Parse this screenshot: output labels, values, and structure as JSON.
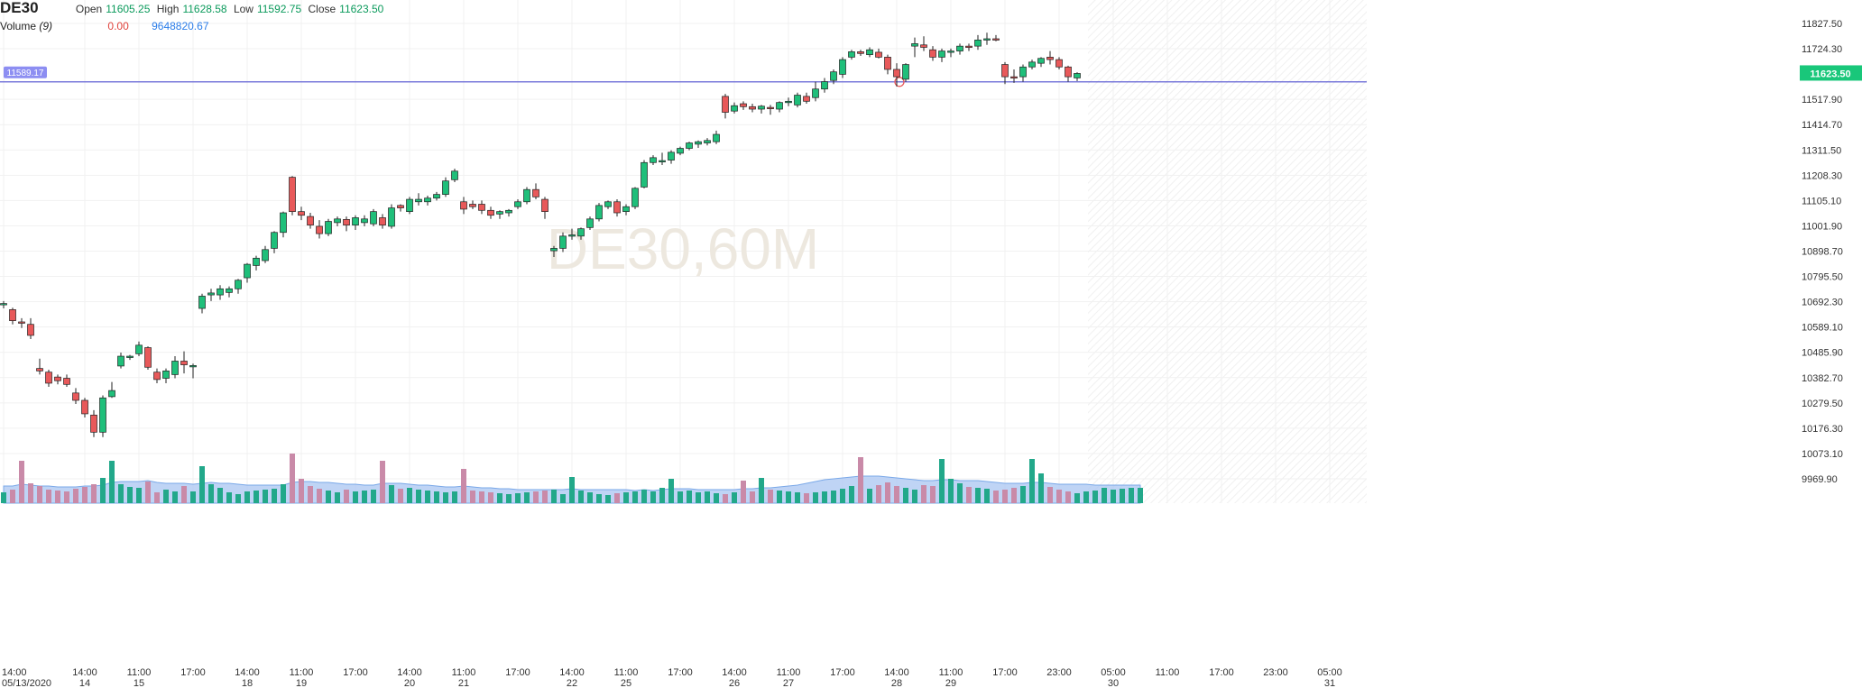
{
  "symbol": "DE30",
  "legend": {
    "open_label": "Open",
    "open": "11605.25",
    "high_label": "High",
    "high": "11628.58",
    "low_label": "Low",
    "low": "11592.75",
    "close_label": "Close",
    "close": "11623.50",
    "volume_label": "Volume",
    "volume_period": "(9)",
    "volume_value": "0.00",
    "volume_ma": "9648820.67"
  },
  "watermark": "DE30,60M",
  "colors": {
    "up": "#1fbf7a",
    "down": "#e8595a",
    "wick": "#222222",
    "hline": "#4f4fcf",
    "vol_up": "#22a88a",
    "vol_down": "#c98aa8",
    "vol_area": "#a9c6f2",
    "price_label": "#19c77a",
    "hline_label": "#8d8ef2"
  },
  "chart_data": {
    "type": "candlestick",
    "title": "DE30,60M",
    "ylim": [
      9900,
      11880
    ],
    "y_ticks": [
      "11827.50",
      "11724.30",
      "11517.90",
      "11414.70",
      "11311.50",
      "11208.30",
      "11105.10",
      "11001.90",
      "10898.70",
      "10795.50",
      "10692.30",
      "10589.10",
      "10485.90",
      "10382.70",
      "10279.50",
      "10176.30",
      "10073.10",
      "9969.90"
    ],
    "x_ticks": [
      {
        "time": "14:00",
        "date": "05/13/2020",
        "slot": 0
      },
      {
        "time": "14:00",
        "date": "14",
        "slot": 9
      },
      {
        "time": "11:00",
        "date": "15",
        "slot": 15
      },
      {
        "time": "17:00",
        "date": "",
        "slot": 21
      },
      {
        "time": "14:00",
        "date": "18",
        "slot": 27
      },
      {
        "time": "11:00",
        "date": "19",
        "slot": 33
      },
      {
        "time": "17:00",
        "date": "",
        "slot": 39
      },
      {
        "time": "14:00",
        "date": "20",
        "slot": 45
      },
      {
        "time": "11:00",
        "date": "21",
        "slot": 51
      },
      {
        "time": "17:00",
        "date": "",
        "slot": 57
      },
      {
        "time": "14:00",
        "date": "22",
        "slot": 63
      },
      {
        "time": "11:00",
        "date": "25",
        "slot": 69
      },
      {
        "time": "17:00",
        "date": "",
        "slot": 75
      },
      {
        "time": "14:00",
        "date": "26",
        "slot": 81
      },
      {
        "time": "11:00",
        "date": "27",
        "slot": 87
      },
      {
        "time": "17:00",
        "date": "",
        "slot": 93
      },
      {
        "time": "14:00",
        "date": "28",
        "slot": 99
      },
      {
        "time": "11:00",
        "date": "29",
        "slot": 105
      },
      {
        "time": "17:00",
        "date": "",
        "slot": 111
      },
      {
        "time": "23:00",
        "date": "",
        "slot": 117
      },
      {
        "time": "05:00",
        "date": "30",
        "slot": 123
      },
      {
        "time": "11:00",
        "date": "",
        "slot": 129
      },
      {
        "time": "17:00",
        "date": "",
        "slot": 135
      },
      {
        "time": "23:00",
        "date": "",
        "slot": 141
      },
      {
        "time": "05:00",
        "date": "31",
        "slot": 147
      }
    ],
    "hline": {
      "value": 11589.17,
      "label": "11589.17"
    },
    "last_price": {
      "value": 11623.5,
      "label": "11623.50"
    },
    "candles": [
      {
        "o": 10680,
        "h": 10695,
        "l": 10665,
        "c": 10685
      },
      {
        "o": 10660,
        "h": 10668,
        "l": 10600,
        "c": 10615
      },
      {
        "o": 10610,
        "h": 10625,
        "l": 10585,
        "c": 10605
      },
      {
        "o": 10600,
        "h": 10625,
        "l": 10540,
        "c": 10555
      },
      {
        "o": 10420,
        "h": 10460,
        "l": 10395,
        "c": 10410
      },
      {
        "o": 10405,
        "h": 10415,
        "l": 10345,
        "c": 10360
      },
      {
        "o": 10385,
        "h": 10395,
        "l": 10355,
        "c": 10370
      },
      {
        "o": 10380,
        "h": 10395,
        "l": 10345,
        "c": 10355
      },
      {
        "o": 10320,
        "h": 10340,
        "l": 10275,
        "c": 10290
      },
      {
        "o": 10290,
        "h": 10300,
        "l": 10220,
        "c": 10235
      },
      {
        "o": 10230,
        "h": 10250,
        "l": 10140,
        "c": 10160
      },
      {
        "o": 10160,
        "h": 10310,
        "l": 10140,
        "c": 10300
      },
      {
        "o": 10305,
        "h": 10365,
        "l": 10300,
        "c": 10330
      },
      {
        "o": 10430,
        "h": 10485,
        "l": 10420,
        "c": 10470
      },
      {
        "o": 10465,
        "h": 10475,
        "l": 10455,
        "c": 10470
      },
      {
        "o": 10480,
        "h": 10530,
        "l": 10470,
        "c": 10515
      },
      {
        "o": 10505,
        "h": 10510,
        "l": 10415,
        "c": 10425
      },
      {
        "o": 10405,
        "h": 10420,
        "l": 10360,
        "c": 10375
      },
      {
        "o": 10380,
        "h": 10420,
        "l": 10360,
        "c": 10410
      },
      {
        "o": 10395,
        "h": 10470,
        "l": 10380,
        "c": 10450
      },
      {
        "o": 10450,
        "h": 10490,
        "l": 10400,
        "c": 10435
      },
      {
        "o": 10430,
        "h": 10440,
        "l": 10380,
        "c": 10432
      },
      {
        "o": 10665,
        "h": 10725,
        "l": 10645,
        "c": 10715
      },
      {
        "o": 10720,
        "h": 10745,
        "l": 10695,
        "c": 10728
      },
      {
        "o": 10720,
        "h": 10760,
        "l": 10700,
        "c": 10745
      },
      {
        "o": 10730,
        "h": 10755,
        "l": 10710,
        "c": 10745
      },
      {
        "o": 10745,
        "h": 10785,
        "l": 10725,
        "c": 10780
      },
      {
        "o": 10790,
        "h": 10850,
        "l": 10770,
        "c": 10845
      },
      {
        "o": 10840,
        "h": 10880,
        "l": 10820,
        "c": 10870
      },
      {
        "o": 10860,
        "h": 10920,
        "l": 10850,
        "c": 10905
      },
      {
        "o": 10910,
        "h": 10980,
        "l": 10890,
        "c": 10975
      },
      {
        "o": 10975,
        "h": 11060,
        "l": 10955,
        "c": 11055
      },
      {
        "o": 11200,
        "h": 11205,
        "l": 11045,
        "c": 11060
      },
      {
        "o": 11060,
        "h": 11080,
        "l": 11025,
        "c": 11045
      },
      {
        "o": 11040,
        "h": 11055,
        "l": 10990,
        "c": 11005
      },
      {
        "o": 11000,
        "h": 11025,
        "l": 10950,
        "c": 10970
      },
      {
        "o": 10970,
        "h": 11030,
        "l": 10960,
        "c": 11020
      },
      {
        "o": 11015,
        "h": 11040,
        "l": 11000,
        "c": 11030
      },
      {
        "o": 11028,
        "h": 11040,
        "l": 10980,
        "c": 11005
      },
      {
        "o": 11005,
        "h": 11045,
        "l": 10985,
        "c": 11035
      },
      {
        "o": 11015,
        "h": 11045,
        "l": 11000,
        "c": 11030
      },
      {
        "o": 11010,
        "h": 11070,
        "l": 11000,
        "c": 11060
      },
      {
        "o": 11035,
        "h": 11050,
        "l": 10990,
        "c": 11005
      },
      {
        "o": 11000,
        "h": 11090,
        "l": 10990,
        "c": 11075
      },
      {
        "o": 11085,
        "h": 11090,
        "l": 11060,
        "c": 11075
      },
      {
        "o": 11060,
        "h": 11120,
        "l": 11050,
        "c": 11110
      },
      {
        "o": 11100,
        "h": 11135,
        "l": 11085,
        "c": 11110
      },
      {
        "o": 11100,
        "h": 11125,
        "l": 11085,
        "c": 11115
      },
      {
        "o": 11115,
        "h": 11140,
        "l": 11105,
        "c": 11130
      },
      {
        "o": 11130,
        "h": 11200,
        "l": 11120,
        "c": 11185
      },
      {
        "o": 11190,
        "h": 11235,
        "l": 11180,
        "c": 11225
      },
      {
        "o": 11100,
        "h": 11120,
        "l": 11050,
        "c": 11070
      },
      {
        "o": 11090,
        "h": 11105,
        "l": 11070,
        "c": 11080
      },
      {
        "o": 11090,
        "h": 11105,
        "l": 11050,
        "c": 11065
      },
      {
        "o": 11065,
        "h": 11080,
        "l": 11030,
        "c": 11045
      },
      {
        "o": 11050,
        "h": 11065,
        "l": 11030,
        "c": 11060
      },
      {
        "o": 11055,
        "h": 11070,
        "l": 11040,
        "c": 11065
      },
      {
        "o": 11080,
        "h": 11110,
        "l": 11070,
        "c": 11100
      },
      {
        "o": 11100,
        "h": 11160,
        "l": 11090,
        "c": 11150
      },
      {
        "o": 11150,
        "h": 11175,
        "l": 11110,
        "c": 11120
      },
      {
        "o": 11110,
        "h": 11120,
        "l": 11030,
        "c": 11060
      },
      {
        "o": 10900,
        "h": 10920,
        "l": 10875,
        "c": 10910
      },
      {
        "o": 10910,
        "h": 10975,
        "l": 10895,
        "c": 10960
      },
      {
        "o": 10960,
        "h": 10990,
        "l": 10945,
        "c": 10965
      },
      {
        "o": 10960,
        "h": 10995,
        "l": 10945,
        "c": 10990
      },
      {
        "o": 10995,
        "h": 11040,
        "l": 10985,
        "c": 11030
      },
      {
        "o": 11030,
        "h": 11095,
        "l": 11020,
        "c": 11085
      },
      {
        "o": 11080,
        "h": 11105,
        "l": 11070,
        "c": 11100
      },
      {
        "o": 11100,
        "h": 11110,
        "l": 11040,
        "c": 11055
      },
      {
        "o": 11060,
        "h": 11090,
        "l": 11045,
        "c": 11080
      },
      {
        "o": 11080,
        "h": 11160,
        "l": 11070,
        "c": 11155
      },
      {
        "o": 11160,
        "h": 11270,
        "l": 11155,
        "c": 11260
      },
      {
        "o": 11260,
        "h": 11290,
        "l": 11250,
        "c": 11280
      },
      {
        "o": 11265,
        "h": 11300,
        "l": 11250,
        "c": 11268
      },
      {
        "o": 11270,
        "h": 11310,
        "l": 11255,
        "c": 11302
      },
      {
        "o": 11298,
        "h": 11325,
        "l": 11290,
        "c": 11318
      },
      {
        "o": 11318,
        "h": 11345,
        "l": 11310,
        "c": 11340
      },
      {
        "o": 11335,
        "h": 11350,
        "l": 11320,
        "c": 11345
      },
      {
        "o": 11340,
        "h": 11360,
        "l": 11330,
        "c": 11350
      },
      {
        "o": 11345,
        "h": 11390,
        "l": 11335,
        "c": 11375
      },
      {
        "o": 11530,
        "h": 11540,
        "l": 11440,
        "c": 11465
      },
      {
        "o": 11470,
        "h": 11505,
        "l": 11460,
        "c": 11492
      },
      {
        "o": 11500,
        "h": 11510,
        "l": 11475,
        "c": 11488
      },
      {
        "o": 11488,
        "h": 11500,
        "l": 11465,
        "c": 11478
      },
      {
        "o": 11478,
        "h": 11495,
        "l": 11460,
        "c": 11490
      },
      {
        "o": 11485,
        "h": 11495,
        "l": 11455,
        "c": 11480
      },
      {
        "o": 11478,
        "h": 11510,
        "l": 11465,
        "c": 11505
      },
      {
        "o": 11505,
        "h": 11525,
        "l": 11490,
        "c": 11510
      },
      {
        "o": 11495,
        "h": 11545,
        "l": 11485,
        "c": 11535
      },
      {
        "o": 11530,
        "h": 11545,
        "l": 11500,
        "c": 11510
      },
      {
        "o": 11525,
        "h": 11590,
        "l": 11510,
        "c": 11560
      },
      {
        "o": 11560,
        "h": 11605,
        "l": 11545,
        "c": 11590
      },
      {
        "o": 11595,
        "h": 11640,
        "l": 11580,
        "c": 11630
      },
      {
        "o": 11620,
        "h": 11690,
        "l": 11605,
        "c": 11680
      },
      {
        "o": 11690,
        "h": 11720,
        "l": 11680,
        "c": 11712
      },
      {
        "o": 11712,
        "h": 11720,
        "l": 11695,
        "c": 11705
      },
      {
        "o": 11700,
        "h": 11730,
        "l": 11690,
        "c": 11720
      },
      {
        "o": 11710,
        "h": 11725,
        "l": 11685,
        "c": 11690
      },
      {
        "o": 11690,
        "h": 11700,
        "l": 11620,
        "c": 11640
      },
      {
        "o": 11640,
        "h": 11665,
        "l": 11570,
        "c": 11610
      },
      {
        "o": 11600,
        "h": 11665,
        "l": 11590,
        "c": 11660
      },
      {
        "o": 11735,
        "h": 11770,
        "l": 11690,
        "c": 11745
      },
      {
        "o": 11740,
        "h": 11775,
        "l": 11715,
        "c": 11730
      },
      {
        "o": 11720,
        "h": 11735,
        "l": 11675,
        "c": 11690
      },
      {
        "o": 11690,
        "h": 11725,
        "l": 11670,
        "c": 11715
      },
      {
        "o": 11710,
        "h": 11725,
        "l": 11690,
        "c": 11715
      },
      {
        "o": 11715,
        "h": 11745,
        "l": 11700,
        "c": 11735
      },
      {
        "o": 11735,
        "h": 11745,
        "l": 11715,
        "c": 11730
      },
      {
        "o": 11735,
        "h": 11780,
        "l": 11720,
        "c": 11760
      },
      {
        "o": 11760,
        "h": 11790,
        "l": 11740,
        "c": 11765
      },
      {
        "o": 11765,
        "h": 11780,
        "l": 11755,
        "c": 11762
      },
      {
        "o": 11660,
        "h": 11670,
        "l": 11580,
        "c": 11610
      },
      {
        "o": 11610,
        "h": 11640,
        "l": 11585,
        "c": 11605
      },
      {
        "o": 11610,
        "h": 11660,
        "l": 11590,
        "c": 11650
      },
      {
        "o": 11650,
        "h": 11680,
        "l": 11640,
        "c": 11670
      },
      {
        "o": 11665,
        "h": 11690,
        "l": 11650,
        "c": 11685
      },
      {
        "o": 11690,
        "h": 11715,
        "l": 11660,
        "c": 11680
      },
      {
        "o": 11680,
        "h": 11690,
        "l": 11640,
        "c": 11650
      },
      {
        "o": 11650,
        "h": 11655,
        "l": 11590,
        "c": 11610
      },
      {
        "o": 11605.25,
        "h": 11628.58,
        "l": 11592.75,
        "c": 11623.5
      }
    ],
    "volume": [
      1.2,
      1.5,
      4.7,
      2.2,
      1.9,
      1.5,
      1.4,
      1.3,
      1.6,
      1.8,
      2.1,
      2.8,
      4.7,
      2.1,
      1.8,
      1.7,
      2.4,
      1.2,
      1.5,
      1.3,
      1.9,
      1.3,
      4.1,
      2.1,
      1.7,
      1.2,
      1.0,
      1.3,
      1.4,
      1.5,
      1.6,
      2.1,
      5.5,
      2.7,
      1.9,
      1.6,
      1.4,
      1.2,
      1.5,
      1.3,
      1.4,
      1.5,
      4.7,
      2.0,
      1.6,
      1.7,
      1.5,
      1.4,
      1.3,
      1.2,
      1.3,
      3.8,
      1.4,
      1.3,
      1.2,
      1.1,
      1.0,
      1.1,
      1.2,
      1.3,
      1.4,
      1.5,
      1.0,
      2.9,
      1.4,
      1.2,
      1.0,
      0.9,
      1.1,
      1.2,
      1.3,
      1.5,
      1.3,
      1.7,
      2.7,
      1.3,
      1.4,
      1.2,
      1.3,
      1.1,
      1.0,
      1.2,
      2.5,
      1.3,
      2.8,
      1.5,
      1.4,
      1.3,
      1.2,
      1.1,
      1.2,
      1.3,
      1.4,
      1.6,
      1.9,
      5.1,
      1.6,
      2.0,
      2.3,
      1.9,
      1.7,
      1.5,
      2.0,
      1.9,
      4.9,
      2.7,
      2.2,
      1.8,
      1.7,
      1.6,
      1.4,
      1.5,
      1.7,
      1.9,
      4.9,
      3.3,
      1.8,
      1.5,
      1.3,
      1.1,
      1.3,
      1.4,
      1.7,
      1.5,
      1.6,
      1.7,
      1.7
    ],
    "volume_ma": [
      1.9,
      1.9,
      2.1,
      2.0,
      1.9,
      1.9,
      1.8,
      1.8,
      1.8,
      1.9,
      1.9,
      2.0,
      2.3,
      2.4,
      2.4,
      2.4,
      2.5,
      2.3,
      2.2,
      2.2,
      2.2,
      2.1,
      2.2,
      2.3,
      2.2,
      2.2,
      2.1,
      2.0,
      2.0,
      2.0,
      2.0,
      2.0,
      2.3,
      2.4,
      2.4,
      2.3,
      2.3,
      2.2,
      2.1,
      2.1,
      2.0,
      2.0,
      2.2,
      2.2,
      2.2,
      2.1,
      2.0,
      2.0,
      1.9,
      1.8,
      1.8,
      1.9,
      1.8,
      1.7,
      1.7,
      1.6,
      1.6,
      1.5,
      1.5,
      1.5,
      1.5,
      1.5,
      1.5,
      1.6,
      1.5,
      1.5,
      1.5,
      1.5,
      1.5,
      1.5,
      1.4,
      1.5,
      1.4,
      1.5,
      1.6,
      1.6,
      1.6,
      1.5,
      1.5,
      1.5,
      1.5,
      1.5,
      1.6,
      1.6,
      1.7,
      1.7,
      1.8,
      1.9,
      2.0,
      2.2,
      2.4,
      2.6,
      2.7,
      2.8,
      2.9,
      3.0,
      3.0,
      3.0,
      2.9,
      2.8,
      2.7,
      2.6,
      2.5,
      2.5,
      2.6,
      2.6,
      2.5,
      2.5,
      2.5,
      2.4,
      2.3,
      2.2,
      2.2,
      2.2,
      2.3,
      2.3,
      2.2,
      2.1,
      2.1,
      2.1,
      2.1,
      2.0,
      2.0,
      2.0,
      2.0,
      2.0,
      2.0
    ],
    "volume_up": []
  }
}
